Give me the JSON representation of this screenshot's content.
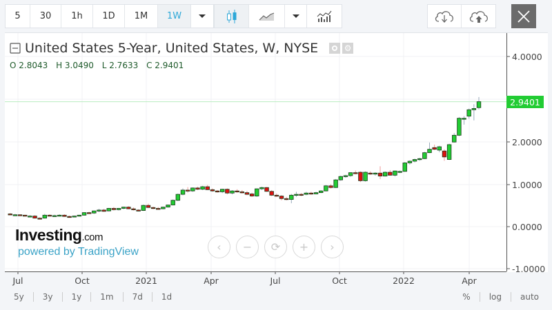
{
  "toolbar": {
    "intervals": [
      {
        "label": "5",
        "active": false
      },
      {
        "label": "30",
        "active": false
      },
      {
        "label": "1h",
        "active": false
      },
      {
        "label": "1D",
        "active": false
      },
      {
        "label": "1M",
        "active": false
      },
      {
        "label": "1W",
        "active": true
      }
    ],
    "chart_type_icons": [
      "candlestick-icon",
      "area-chart-icon"
    ],
    "indicators_icon": "indicators-icon",
    "download_icon": "cloud-download-icon",
    "upload_icon": "cloud-upload-icon",
    "close_icon": "close-icon"
  },
  "legend": {
    "title": "United States 5-Year, United States, W, NYSE",
    "open": "O 2.8043",
    "high": "H 3.0490",
    "low": "L 2.7633",
    "close": "C 2.9401"
  },
  "branding": {
    "logo_main": "Investing",
    "logo_suffix": ".com",
    "logo_sub": "powered by TradingView"
  },
  "nav_buttons": [
    "‹",
    "−",
    "⟳",
    "+",
    "›"
  ],
  "bottom_bar": {
    "ranges": [
      "5y",
      "3y",
      "1y",
      "1m",
      "7d",
      "1d"
    ],
    "options": [
      "%",
      "log",
      "auto"
    ]
  },
  "colors": {
    "up": "#22cc33",
    "down": "#dd1111",
    "last_price_line": "#b8ecbf",
    "accent": "#2da8d8"
  },
  "chart_data": {
    "type": "candlestick",
    "title": "United States 5-Year, United States, W, NYSE",
    "xlabel": "",
    "ylabel": "",
    "ylim": [
      -1.0,
      4.6
    ],
    "yticks": [
      "4.0000",
      "2.0000",
      "1.0000",
      "0.0000",
      "-1.0000"
    ],
    "xticks": [
      "Jul",
      "Oct",
      "2021",
      "Apr",
      "Jul",
      "Oct",
      "2022",
      "Apr"
    ],
    "last_price": "2.9401",
    "grid": true,
    "candles": [
      [
        0.3,
        0.32,
        0.27,
        0.28
      ],
      [
        0.28,
        0.3,
        0.26,
        0.28
      ],
      [
        0.28,
        0.29,
        0.26,
        0.27
      ],
      [
        0.27,
        0.28,
        0.24,
        0.25
      ],
      [
        0.25,
        0.27,
        0.23,
        0.25
      ],
      [
        0.25,
        0.27,
        0.19,
        0.2
      ],
      [
        0.2,
        0.22,
        0.17,
        0.18
      ],
      [
        0.2,
        0.3,
        0.19,
        0.27
      ],
      [
        0.27,
        0.29,
        0.24,
        0.25
      ],
      [
        0.25,
        0.28,
        0.23,
        0.26
      ],
      [
        0.26,
        0.29,
        0.24,
        0.27
      ],
      [
        0.27,
        0.29,
        0.23,
        0.24
      ],
      [
        0.24,
        0.26,
        0.21,
        0.23
      ],
      [
        0.23,
        0.26,
        0.22,
        0.25
      ],
      [
        0.25,
        0.28,
        0.24,
        0.27
      ],
      [
        0.27,
        0.34,
        0.26,
        0.33
      ],
      [
        0.33,
        0.35,
        0.3,
        0.31
      ],
      [
        0.32,
        0.38,
        0.3,
        0.37
      ],
      [
        0.37,
        0.42,
        0.34,
        0.39
      ],
      [
        0.39,
        0.42,
        0.35,
        0.36
      ],
      [
        0.37,
        0.44,
        0.36,
        0.43
      ],
      [
        0.43,
        0.46,
        0.38,
        0.4
      ],
      [
        0.4,
        0.44,
        0.38,
        0.43
      ],
      [
        0.43,
        0.47,
        0.41,
        0.46
      ],
      [
        0.46,
        0.48,
        0.41,
        0.42
      ],
      [
        0.42,
        0.45,
        0.38,
        0.4
      ],
      [
        0.39,
        0.41,
        0.36,
        0.38
      ],
      [
        0.38,
        0.52,
        0.37,
        0.5
      ],
      [
        0.5,
        0.54,
        0.44,
        0.45
      ],
      [
        0.45,
        0.47,
        0.41,
        0.43
      ],
      [
        0.43,
        0.46,
        0.4,
        0.42
      ],
      [
        0.42,
        0.47,
        0.41,
        0.46
      ],
      [
        0.46,
        0.52,
        0.45,
        0.51
      ],
      [
        0.51,
        0.64,
        0.5,
        0.62
      ],
      [
        0.62,
        0.78,
        0.6,
        0.76
      ],
      [
        0.76,
        0.9,
        0.74,
        0.86
      ],
      [
        0.86,
        0.93,
        0.8,
        0.84
      ],
      [
        0.84,
        0.92,
        0.82,
        0.91
      ],
      [
        0.91,
        0.94,
        0.86,
        0.88
      ],
      [
        0.88,
        0.96,
        0.86,
        0.94
      ],
      [
        0.94,
        0.98,
        0.86,
        0.87
      ],
      [
        0.87,
        0.9,
        0.82,
        0.84
      ],
      [
        0.84,
        0.86,
        0.8,
        0.82
      ],
      [
        0.82,
        0.89,
        0.79,
        0.88
      ],
      [
        0.88,
        0.9,
        0.76,
        0.79
      ],
      [
        0.79,
        0.86,
        0.76,
        0.84
      ],
      [
        0.84,
        0.88,
        0.8,
        0.82
      ],
      [
        0.82,
        0.86,
        0.78,
        0.8
      ],
      [
        0.8,
        0.84,
        0.74,
        0.76
      ],
      [
        0.77,
        0.8,
        0.7,
        0.72
      ],
      [
        0.72,
        0.9,
        0.7,
        0.89
      ],
      [
        0.89,
        0.94,
        0.86,
        0.92
      ],
      [
        0.92,
        0.93,
        0.82,
        0.83
      ],
      [
        0.83,
        0.86,
        0.72,
        0.74
      ],
      [
        0.74,
        0.78,
        0.7,
        0.72
      ],
      [
        0.72,
        0.74,
        0.62,
        0.66
      ],
      [
        0.66,
        0.7,
        0.62,
        0.64
      ],
      [
        0.64,
        0.77,
        0.55,
        0.74
      ],
      [
        0.74,
        0.82,
        0.7,
        0.76
      ],
      [
        0.76,
        0.79,
        0.72,
        0.75
      ],
      [
        0.76,
        0.82,
        0.74,
        0.79
      ],
      [
        0.79,
        0.82,
        0.75,
        0.77
      ],
      [
        0.77,
        0.82,
        0.76,
        0.8
      ],
      [
        0.8,
        0.86,
        0.79,
        0.84
      ],
      [
        0.84,
        0.98,
        0.83,
        0.96
      ],
      [
        0.96,
        1.0,
        0.9,
        0.92
      ],
      [
        0.92,
        1.12,
        0.91,
        1.1
      ],
      [
        1.1,
        1.2,
        1.08,
        1.18
      ],
      [
        1.18,
        1.22,
        1.15,
        1.2
      ],
      [
        1.2,
        1.28,
        1.17,
        1.27
      ],
      [
        1.27,
        1.32,
        1.23,
        1.25
      ],
      [
        1.28,
        1.3,
        1.05,
        1.08
      ],
      [
        1.08,
        1.3,
        1.06,
        1.28
      ],
      [
        1.26,
        1.3,
        1.22,
        1.24
      ],
      [
        1.24,
        1.28,
        1.2,
        1.26
      ],
      [
        1.26,
        1.42,
        1.12,
        1.19
      ],
      [
        1.19,
        1.3,
        1.18,
        1.28
      ],
      [
        1.28,
        1.33,
        1.2,
        1.21
      ],
      [
        1.21,
        1.32,
        1.18,
        1.31
      ],
      [
        1.29,
        1.32,
        1.26,
        1.3
      ],
      [
        1.3,
        1.52,
        1.29,
        1.5
      ],
      [
        1.5,
        1.56,
        1.46,
        1.54
      ],
      [
        1.54,
        1.6,
        1.51,
        1.58
      ],
      [
        1.58,
        1.62,
        1.55,
        1.6
      ],
      [
        1.6,
        1.76,
        1.59,
        1.74
      ],
      [
        1.74,
        1.98,
        1.73,
        1.82
      ],
      [
        1.86,
        1.93,
        1.8,
        1.82
      ],
      [
        1.8,
        1.9,
        1.75,
        1.88
      ],
      [
        1.78,
        1.82,
        1.55,
        1.64
      ],
      [
        1.58,
        1.95,
        1.57,
        1.93
      ],
      [
        1.99,
        2.2,
        1.98,
        2.15
      ],
      [
        2.15,
        2.58,
        2.13,
        2.55
      ],
      [
        2.55,
        2.6,
        2.4,
        2.55
      ],
      [
        2.6,
        2.78,
        2.54,
        2.75
      ],
      [
        2.75,
        2.88,
        2.5,
        2.78
      ],
      [
        2.8,
        3.05,
        2.76,
        2.94
      ]
    ]
  }
}
